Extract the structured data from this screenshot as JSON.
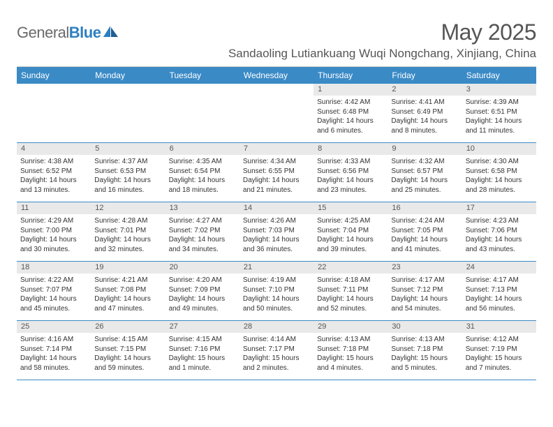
{
  "logo": {
    "text_general": "General",
    "text_blue": "Blue"
  },
  "title": "May 2025",
  "location": "Sandaoling Lutiankuang Wuqi Nongchang, Xinjiang, China",
  "colors": {
    "header_bg": "#3a8ac6",
    "week_border": "#3a8ac6",
    "daynum_bg": "#e9e9e9",
    "text": "#333333",
    "title_text": "#555555"
  },
  "day_headers": [
    "Sunday",
    "Monday",
    "Tuesday",
    "Wednesday",
    "Thursday",
    "Friday",
    "Saturday"
  ],
  "weeks": [
    [
      {
        "n": "",
        "lines": []
      },
      {
        "n": "",
        "lines": []
      },
      {
        "n": "",
        "lines": []
      },
      {
        "n": "",
        "lines": []
      },
      {
        "n": "1",
        "lines": [
          "Sunrise: 4:42 AM",
          "Sunset: 6:48 PM",
          "Daylight: 14 hours",
          "and 6 minutes."
        ]
      },
      {
        "n": "2",
        "lines": [
          "Sunrise: 4:41 AM",
          "Sunset: 6:49 PM",
          "Daylight: 14 hours",
          "and 8 minutes."
        ]
      },
      {
        "n": "3",
        "lines": [
          "Sunrise: 4:39 AM",
          "Sunset: 6:51 PM",
          "Daylight: 14 hours",
          "and 11 minutes."
        ]
      }
    ],
    [
      {
        "n": "4",
        "lines": [
          "Sunrise: 4:38 AM",
          "Sunset: 6:52 PM",
          "Daylight: 14 hours",
          "and 13 minutes."
        ]
      },
      {
        "n": "5",
        "lines": [
          "Sunrise: 4:37 AM",
          "Sunset: 6:53 PM",
          "Daylight: 14 hours",
          "and 16 minutes."
        ]
      },
      {
        "n": "6",
        "lines": [
          "Sunrise: 4:35 AM",
          "Sunset: 6:54 PM",
          "Daylight: 14 hours",
          "and 18 minutes."
        ]
      },
      {
        "n": "7",
        "lines": [
          "Sunrise: 4:34 AM",
          "Sunset: 6:55 PM",
          "Daylight: 14 hours",
          "and 21 minutes."
        ]
      },
      {
        "n": "8",
        "lines": [
          "Sunrise: 4:33 AM",
          "Sunset: 6:56 PM",
          "Daylight: 14 hours",
          "and 23 minutes."
        ]
      },
      {
        "n": "9",
        "lines": [
          "Sunrise: 4:32 AM",
          "Sunset: 6:57 PM",
          "Daylight: 14 hours",
          "and 25 minutes."
        ]
      },
      {
        "n": "10",
        "lines": [
          "Sunrise: 4:30 AM",
          "Sunset: 6:58 PM",
          "Daylight: 14 hours",
          "and 28 minutes."
        ]
      }
    ],
    [
      {
        "n": "11",
        "lines": [
          "Sunrise: 4:29 AM",
          "Sunset: 7:00 PM",
          "Daylight: 14 hours",
          "and 30 minutes."
        ]
      },
      {
        "n": "12",
        "lines": [
          "Sunrise: 4:28 AM",
          "Sunset: 7:01 PM",
          "Daylight: 14 hours",
          "and 32 minutes."
        ]
      },
      {
        "n": "13",
        "lines": [
          "Sunrise: 4:27 AM",
          "Sunset: 7:02 PM",
          "Daylight: 14 hours",
          "and 34 minutes."
        ]
      },
      {
        "n": "14",
        "lines": [
          "Sunrise: 4:26 AM",
          "Sunset: 7:03 PM",
          "Daylight: 14 hours",
          "and 36 minutes."
        ]
      },
      {
        "n": "15",
        "lines": [
          "Sunrise: 4:25 AM",
          "Sunset: 7:04 PM",
          "Daylight: 14 hours",
          "and 39 minutes."
        ]
      },
      {
        "n": "16",
        "lines": [
          "Sunrise: 4:24 AM",
          "Sunset: 7:05 PM",
          "Daylight: 14 hours",
          "and 41 minutes."
        ]
      },
      {
        "n": "17",
        "lines": [
          "Sunrise: 4:23 AM",
          "Sunset: 7:06 PM",
          "Daylight: 14 hours",
          "and 43 minutes."
        ]
      }
    ],
    [
      {
        "n": "18",
        "lines": [
          "Sunrise: 4:22 AM",
          "Sunset: 7:07 PM",
          "Daylight: 14 hours",
          "and 45 minutes."
        ]
      },
      {
        "n": "19",
        "lines": [
          "Sunrise: 4:21 AM",
          "Sunset: 7:08 PM",
          "Daylight: 14 hours",
          "and 47 minutes."
        ]
      },
      {
        "n": "20",
        "lines": [
          "Sunrise: 4:20 AM",
          "Sunset: 7:09 PM",
          "Daylight: 14 hours",
          "and 49 minutes."
        ]
      },
      {
        "n": "21",
        "lines": [
          "Sunrise: 4:19 AM",
          "Sunset: 7:10 PM",
          "Daylight: 14 hours",
          "and 50 minutes."
        ]
      },
      {
        "n": "22",
        "lines": [
          "Sunrise: 4:18 AM",
          "Sunset: 7:11 PM",
          "Daylight: 14 hours",
          "and 52 minutes."
        ]
      },
      {
        "n": "23",
        "lines": [
          "Sunrise: 4:17 AM",
          "Sunset: 7:12 PM",
          "Daylight: 14 hours",
          "and 54 minutes."
        ]
      },
      {
        "n": "24",
        "lines": [
          "Sunrise: 4:17 AM",
          "Sunset: 7:13 PM",
          "Daylight: 14 hours",
          "and 56 minutes."
        ]
      }
    ],
    [
      {
        "n": "25",
        "lines": [
          "Sunrise: 4:16 AM",
          "Sunset: 7:14 PM",
          "Daylight: 14 hours",
          "and 58 minutes."
        ]
      },
      {
        "n": "26",
        "lines": [
          "Sunrise: 4:15 AM",
          "Sunset: 7:15 PM",
          "Daylight: 14 hours",
          "and 59 minutes."
        ]
      },
      {
        "n": "27",
        "lines": [
          "Sunrise: 4:15 AM",
          "Sunset: 7:16 PM",
          "Daylight: 15 hours",
          "and 1 minute."
        ]
      },
      {
        "n": "28",
        "lines": [
          "Sunrise: 4:14 AM",
          "Sunset: 7:17 PM",
          "Daylight: 15 hours",
          "and 2 minutes."
        ]
      },
      {
        "n": "29",
        "lines": [
          "Sunrise: 4:13 AM",
          "Sunset: 7:18 PM",
          "Daylight: 15 hours",
          "and 4 minutes."
        ]
      },
      {
        "n": "30",
        "lines": [
          "Sunrise: 4:13 AM",
          "Sunset: 7:18 PM",
          "Daylight: 15 hours",
          "and 5 minutes."
        ]
      },
      {
        "n": "31",
        "lines": [
          "Sunrise: 4:12 AM",
          "Sunset: 7:19 PM",
          "Daylight: 15 hours",
          "and 7 minutes."
        ]
      }
    ]
  ]
}
